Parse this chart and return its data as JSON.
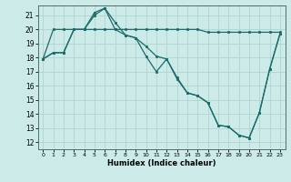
{
  "xlabel": "Humidex (Indice chaleur)",
  "background_color": "#cceae8",
  "grid_color": "#b0d4d0",
  "line_color": "#1a6b6b",
  "xlim": [
    -0.5,
    23.5
  ],
  "ylim": [
    11.5,
    21.7
  ],
  "xticks": [
    0,
    1,
    2,
    3,
    4,
    5,
    6,
    7,
    8,
    9,
    10,
    11,
    12,
    13,
    14,
    15,
    16,
    17,
    18,
    19,
    20,
    21,
    22,
    23
  ],
  "yticks": [
    12,
    13,
    14,
    15,
    16,
    17,
    18,
    19,
    20,
    21
  ],
  "line1_x": [
    0,
    1,
    2,
    3,
    4,
    5,
    6,
    7,
    8,
    9,
    10,
    11,
    12,
    13,
    14,
    15,
    16,
    17,
    18,
    19,
    20,
    21,
    22,
    23
  ],
  "line1_y": [
    17.9,
    18.35,
    18.35,
    20.0,
    20.0,
    21.0,
    21.5,
    20.5,
    19.6,
    19.4,
    18.1,
    17.0,
    17.9,
    16.6,
    15.5,
    15.3,
    14.8,
    13.2,
    13.1,
    12.5,
    12.3,
    14.1,
    17.2,
    19.7
  ],
  "line2_x": [
    0,
    1,
    2,
    3,
    4,
    5,
    6,
    7,
    8,
    9,
    10,
    11,
    12,
    13,
    14,
    15,
    16,
    17,
    18,
    19,
    20,
    21,
    22,
    23
  ],
  "line2_y": [
    17.9,
    18.35,
    18.35,
    20.0,
    20.0,
    21.2,
    21.5,
    20.0,
    19.6,
    19.4,
    18.8,
    18.1,
    17.9,
    16.5,
    15.5,
    15.3,
    14.8,
    13.2,
    13.1,
    12.5,
    12.3,
    14.1,
    17.2,
    19.7
  ],
  "line3_x": [
    0,
    1,
    2,
    3,
    4,
    5,
    6,
    7,
    8,
    9,
    10,
    11,
    12,
    13,
    14,
    15,
    16,
    17,
    18,
    19,
    20,
    21,
    22,
    23
  ],
  "line3_y": [
    17.9,
    20.0,
    20.0,
    20.0,
    20.0,
    20.0,
    20.0,
    20.0,
    20.0,
    20.0,
    20.0,
    20.0,
    20.0,
    20.0,
    20.0,
    20.0,
    19.8,
    19.8,
    19.8,
    19.8,
    19.8,
    19.8,
    19.8,
    19.8
  ]
}
